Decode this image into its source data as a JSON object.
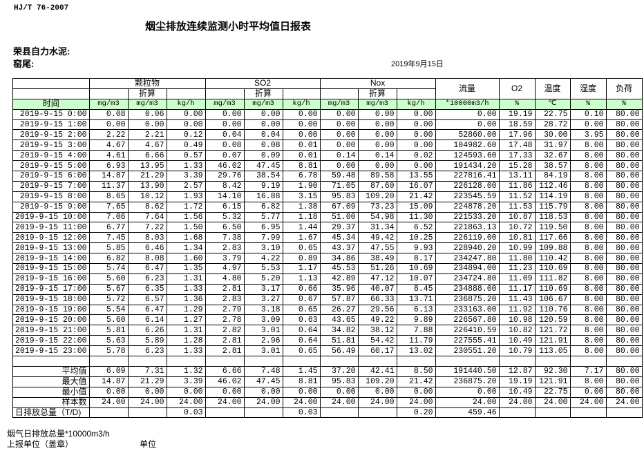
{
  "standard": "HJ/T  76-2007",
  "title": "烟尘排放连续监测小时平均值日报表",
  "company": "荣县自力水泥:",
  "kiln": "窑尾:",
  "date": "2019年9月15日",
  "header": {
    "particulate": "颗粒物",
    "so2": "SO2",
    "nox": "Nox",
    "converted": "折算",
    "flow": "流量",
    "o2": "O2",
    "temp": "温度",
    "humidity": "湿度",
    "load": "负荷",
    "time": "时间",
    "units": [
      "mg/m3",
      "mg/m3",
      "kg/h",
      "mg/m3",
      "mg/m3",
      "kg/h",
      "mg/m3",
      "mg/m3",
      "kg/h",
      "*10000m3/h",
      "%",
      "℃",
      "%",
      "%"
    ]
  },
  "rows": [
    [
      "2019-9-15 0:00",
      "0.08",
      "0.06",
      "0.00",
      "0.00",
      "0.00",
      "0.00",
      "0.00",
      "0.00",
      "0.00",
      "0.00",
      "19.19",
      "22.75",
      "0.10",
      "80.00"
    ],
    [
      "2019-9-15 1:00",
      "0.00",
      "0.00",
      "0.00",
      "0.00",
      "0.00",
      "0.00",
      "0.00",
      "0.00",
      "0.00",
      "0.00",
      "18.59",
      "28.72",
      "0.00",
      "80.00"
    ],
    [
      "2019-9-15 2:00",
      "2.22",
      "2.21",
      "0.12",
      "0.04",
      "0.04",
      "0.00",
      "0.00",
      "0.00",
      "0.00",
      "52860.00",
      "17.96",
      "30.00",
      "3.95",
      "80.00"
    ],
    [
      "2019-9-15 3:00",
      "4.67",
      "4.67",
      "0.49",
      "0.08",
      "0.08",
      "0.01",
      "0.00",
      "0.00",
      "0.00",
      "104982.60",
      "17.48",
      "31.97",
      "8.00",
      "80.00"
    ],
    [
      "2019-9-15 4:00",
      "4.61",
      "6.66",
      "0.57",
      "0.07",
      "0.09",
      "0.01",
      "0.14",
      "0.14",
      "0.02",
      "124593.60",
      "17.33",
      "32.67",
      "8.00",
      "80.00"
    ],
    [
      "2019-9-15 5:00",
      "6.93",
      "13.95",
      "1.33",
      "46.02",
      "47.45",
      "8.81",
      "0.00",
      "0.00",
      "0.00",
      "191434.20",
      "15.28",
      "38.57",
      "8.00",
      "80.00"
    ],
    [
      "2019-9-15 6:00",
      "14.87",
      "21.29",
      "3.39",
      "29.76",
      "38.54",
      "6.78",
      "59.48",
      "89.58",
      "13.55",
      "227816.41",
      "13.11",
      "84.19",
      "8.00",
      "80.00"
    ],
    [
      "2019-9-15 7:00",
      "11.37",
      "13.90",
      "2.57",
      "8.42",
      "9.19",
      "1.90",
      "71.05",
      "87.60",
      "16.07",
      "226128.00",
      "11.86",
      "112.46",
      "8.00",
      "80.00"
    ],
    [
      "2019-9-15 8:00",
      "8.65",
      "10.12",
      "1.93",
      "14.10",
      "16.88",
      "3.15",
      "95.83",
      "109.20",
      "21.42",
      "223545.59",
      "11.52",
      "114.19",
      "8.00",
      "80.00"
    ],
    [
      "2019-9-15 9:00",
      "7.65",
      "8.62",
      "1.72",
      "6.15",
      "6.82",
      "1.38",
      "67.09",
      "73.23",
      "15.09",
      "224878.20",
      "11.53",
      "115.79",
      "8.00",
      "80.00"
    ],
    [
      "2019-9-15 10:00",
      "7.06",
      "7.64",
      "1.56",
      "5.32",
      "5.77",
      "1.18",
      "51.00",
      "54.98",
      "11.30",
      "221533.20",
      "10.87",
      "118.53",
      "8.00",
      "80.00"
    ],
    [
      "2019-9-15 11:00",
      "6.77",
      "7.22",
      "1.50",
      "6.50",
      "6.95",
      "1.44",
      "29.37",
      "31.34",
      "6.52",
      "221863.13",
      "10.72",
      "119.50",
      "8.00",
      "80.00"
    ],
    [
      "2019-9-15 12:00",
      "7.45",
      "8.03",
      "1.68",
      "7.38",
      "7.99",
      "1.67",
      "45.34",
      "49.42",
      "10.25",
      "226119.00",
      "10.81",
      "117.66",
      "8.00",
      "80.00"
    ],
    [
      "2019-9-15 13:00",
      "5.85",
      "6.46",
      "1.34",
      "2.83",
      "3.10",
      "0.65",
      "43.37",
      "47.55",
      "9.93",
      "228940.20",
      "10.99",
      "109.88",
      "8.00",
      "80.00"
    ],
    [
      "2019-9-15 14:00",
      "6.82",
      "8.08",
      "1.60",
      "3.79",
      "4.22",
      "0.89",
      "34.86",
      "38.49",
      "8.17",
      "234247.80",
      "11.80",
      "110.42",
      "8.00",
      "80.00"
    ],
    [
      "2019-9-15 15:00",
      "5.74",
      "6.47",
      "1.35",
      "4.97",
      "5.53",
      "1.17",
      "45.53",
      "51.26",
      "10.69",
      "234894.00",
      "11.23",
      "110.69",
      "8.00",
      "80.00"
    ],
    [
      "2019-9-15 16:00",
      "5.60",
      "6.23",
      "1.31",
      "4.80",
      "5.20",
      "1.13",
      "42.89",
      "47.12",
      "10.07",
      "234724.80",
      "11.09",
      "111.82",
      "8.00",
      "80.00"
    ],
    [
      "2019-9-15 17:00",
      "5.67",
      "6.35",
      "1.33",
      "2.81",
      "3.17",
      "0.66",
      "35.96",
      "40.07",
      "8.45",
      "234888.00",
      "11.17",
      "110.69",
      "8.00",
      "80.00"
    ],
    [
      "2019-9-15 18:00",
      "5.72",
      "6.57",
      "1.36",
      "2.83",
      "3.27",
      "0.67",
      "57.87",
      "66.33",
      "13.71",
      "236875.20",
      "11.43",
      "106.67",
      "8.00",
      "80.00"
    ],
    [
      "2019-9-15 19:00",
      "5.54",
      "6.47",
      "1.29",
      "2.79",
      "3.18",
      "0.65",
      "26.27",
      "29.56",
      "6.13",
      "233163.00",
      "11.92",
      "110.76",
      "8.00",
      "80.00"
    ],
    [
      "2019-9-15 20:00",
      "5.60",
      "6.14",
      "1.27",
      "2.78",
      "3.09",
      "0.63",
      "43.65",
      "49.22",
      "9.89",
      "226567.80",
      "10.98",
      "120.59",
      "8.00",
      "80.00"
    ],
    [
      "2019-9-15 21:00",
      "5.81",
      "6.26",
      "1.31",
      "2.82",
      "3.01",
      "0.64",
      "34.82",
      "38.12",
      "7.88",
      "226410.59",
      "10.82",
      "121.72",
      "8.00",
      "80.00"
    ],
    [
      "2019-9-15 22:00",
      "5.63",
      "5.89",
      "1.28",
      "2.81",
      "2.96",
      "0.64",
      "51.81",
      "54.42",
      "11.79",
      "227555.41",
      "10.49",
      "121.91",
      "8.00",
      "80.00"
    ],
    [
      "2019-9-15 23:00",
      "5.78",
      "6.23",
      "1.33",
      "2.81",
      "3.01",
      "0.65",
      "56.49",
      "60.17",
      "13.02",
      "230551.20",
      "10.79",
      "113.05",
      "8.00",
      "80.00"
    ]
  ],
  "summary": [
    [
      "平均值",
      "6.09",
      "7.31",
      "1.32",
      "6.66",
      "7.48",
      "1.45",
      "37.20",
      "42.41",
      "8.50",
      "191440.50",
      "12.87",
      "92.30",
      "7.17",
      "80.00"
    ],
    [
      "最大值",
      "14.87",
      "21.29",
      "3.39",
      "46.02",
      "47.45",
      "8.81",
      "95.83",
      "109.20",
      "21.42",
      "236875.20",
      "19.19",
      "121.91",
      "8.00",
      "80.00"
    ],
    [
      "最小值",
      "0.00",
      "0.00",
      "0.00",
      "0.00",
      "0.00",
      "0.00",
      "0.00",
      "0.00",
      "0.00",
      "0.00",
      "10.49",
      "22.75",
      "0.00",
      "80.00"
    ],
    [
      "样本数",
      "24.00",
      "24.00",
      "24.00",
      "24.00",
      "24.00",
      "24.00",
      "24.00",
      "24.00",
      "24.00",
      "24.00",
      "24.00",
      "24.00",
      "24.00",
      "24.00"
    ],
    [
      "日排放总量（T/D)",
      "",
      "",
      "0.03",
      "",
      "",
      "0.03",
      "",
      "",
      "0.20",
      "459.46",
      "",
      "",
      "",
      ""
    ]
  ],
  "footer": {
    "flue_total": "烟气日排放总量*10000m3/h",
    "reporter": "上报单位（盖章）",
    "unit": "单位"
  },
  "colors": {
    "unit_row_bg": "#ccffcc"
  }
}
